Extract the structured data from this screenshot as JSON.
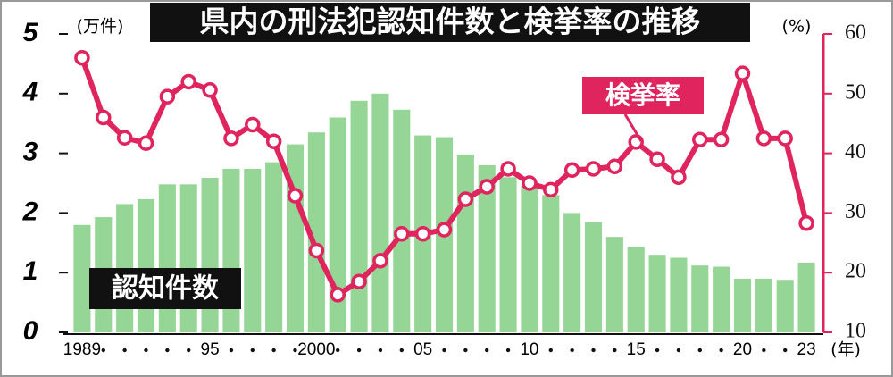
{
  "chart_data": {
    "type": "bar_line",
    "title": "県内の刑法犯認知件数と検挙率の推移",
    "y_unit": "(万件)",
    "y2_unit": "(%)",
    "x_unit": "(年)",
    "categories": [
      "1989",
      null,
      null,
      null,
      null,
      null,
      "95",
      null,
      null,
      null,
      null,
      "2000",
      null,
      null,
      null,
      null,
      "05",
      null,
      null,
      null,
      null,
      "10",
      null,
      null,
      null,
      null,
      "15",
      null,
      null,
      null,
      null,
      "20",
      null,
      null,
      "23"
    ],
    "series": [
      {
        "name": "認知件数",
        "type": "bar",
        "color": "#95d595",
        "values": [
          1.8,
          1.93,
          2.15,
          2.23,
          2.48,
          2.48,
          2.59,
          2.74,
          2.74,
          2.85,
          3.15,
          3.35,
          3.6,
          3.88,
          4.0,
          3.73,
          3.3,
          3.27,
          2.98,
          2.8,
          2.6,
          2.45,
          2.3,
          2.0,
          1.85,
          1.6,
          1.43,
          1.3,
          1.25,
          1.12,
          1.1,
          0.9,
          0.9,
          0.88,
          1.17
        ]
      },
      {
        "name": "検挙率",
        "type": "line",
        "axis": "y2",
        "color": "#e0245e",
        "values": [
          56,
          46,
          42.6,
          41.7,
          49.5,
          52,
          50.6,
          42.5,
          44.8,
          42,
          32.9,
          23.7,
          16.3,
          18.5,
          22,
          26.5,
          26.5,
          27.2,
          32.3,
          34.4,
          37.4,
          35,
          33.9,
          37.2,
          37.4,
          37.8,
          41.9,
          39,
          36,
          42.3,
          42.3,
          53.4,
          42.5,
          42.5,
          28.3
        ]
      }
    ],
    "ylim": [
      0,
      5
    ],
    "yticks": [
      0,
      1,
      2,
      3,
      4,
      5
    ],
    "y2lim": [
      10,
      60
    ],
    "y2ticks": [
      10,
      20,
      30,
      40,
      50,
      60
    ]
  }
}
